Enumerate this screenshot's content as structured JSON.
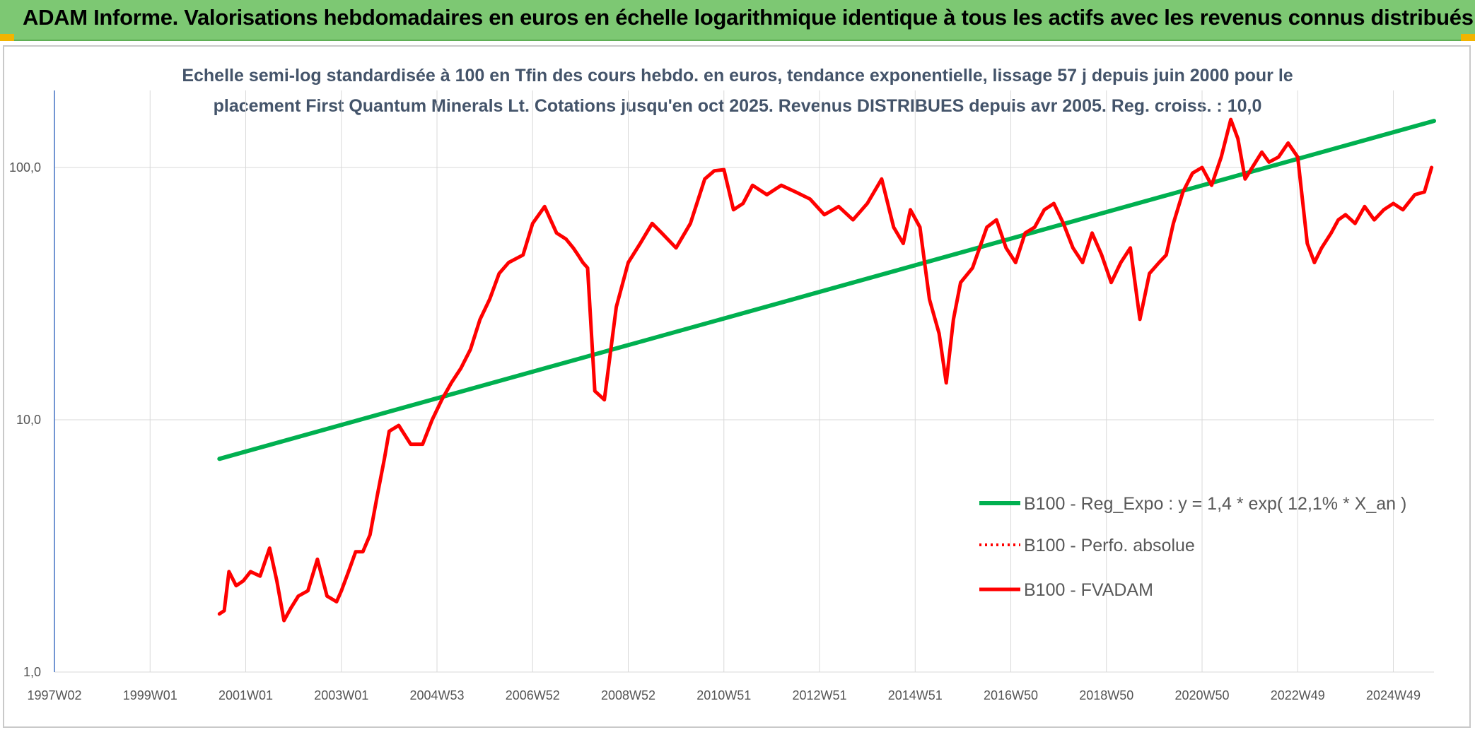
{
  "header": {
    "title": "ADAM Informe. Valorisations hebdomadaires en euros en échelle logarithmique identique à tous les actifs avec les revenus connus distribués"
  },
  "colors": {
    "header_bg": "#7dc873",
    "trend": "#00b050",
    "price": "#ff0000",
    "grid": "#d9d9d9",
    "text": "#44546a"
  },
  "chart_data": {
    "type": "line",
    "subtitle_line1": "Echelle semi-log standardisée à 100 en Tfin des cours hebdo. en euros, tendance exponentielle, lissage 57 j depuis juin 2000 pour le",
    "subtitle_line2": "placement First Quantum Minerals Lt. Cotations jusqu'en oct 2025. Revenus DISTRIBUES depuis avr 2005. Reg. croiss. : 10,0",
    "y_scale": "log",
    "ylim": [
      1,
      180
    ],
    "y_tick_labels": [
      "100,0",
      "10,0",
      "1,0"
    ],
    "x_tick_labels": [
      "1997W02",
      "1999W01",
      "2001W01",
      "2003W01",
      "2004W53",
      "2006W52",
      "2008W52",
      "2010W51",
      "2012W51",
      "2014W51",
      "2016W50",
      "2018W50",
      "2020W50",
      "2022W49",
      "2024W49"
    ],
    "xlim": [
      1997.0,
      2025.85
    ],
    "grid": true,
    "legend_position": "right",
    "legend": [
      "B100 - Reg_Expo : y = 1,4 * exp( 12,1% *  X_an )",
      "B100 - Perfo. absolue",
      "B100 - FVADAM"
    ],
    "series": [
      {
        "name": "B100 - Reg_Expo : y = 1,4 * exp( 12,1% *  X_an )",
        "style": "solid",
        "x": [
          2000.45,
          2025.85
        ],
        "y": [
          7.0,
          153.0
        ]
      },
      {
        "name": "B100 - Perfo. absolue",
        "style": "dotted",
        "x": [],
        "y": []
      },
      {
        "name": "B100 - FVADAM",
        "style": "solid",
        "x": [
          2000.45,
          2000.55,
          2000.65,
          2000.8,
          2000.95,
          2001.1,
          2001.3,
          2001.5,
          2001.65,
          2001.8,
          2001.95,
          2002.1,
          2002.3,
          2002.5,
          2002.7,
          2002.9,
          2003.0,
          2003.15,
          2003.3,
          2003.45,
          2003.6,
          2003.75,
          2003.9,
          2004.0,
          2004.2,
          2004.45,
          2004.7,
          2004.9,
          2005.1,
          2005.3,
          2005.5,
          2005.7,
          2005.9,
          2006.1,
          2006.3,
          2006.5,
          2006.8,
          2007.0,
          2007.25,
          2007.5,
          2007.7,
          2007.85,
          2007.95,
          2008.05,
          2008.15,
          2008.3,
          2008.5,
          2008.75,
          2009.0,
          2009.25,
          2009.5,
          2009.7,
          2010.0,
          2010.3,
          2010.6,
          2010.8,
          2011.0,
          2011.2,
          2011.4,
          2011.6,
          2011.9,
          2012.2,
          2012.5,
          2012.8,
          2013.1,
          2013.4,
          2013.7,
          2014.0,
          2014.3,
          2014.55,
          2014.75,
          2014.9,
          2015.1,
          2015.3,
          2015.5,
          2015.65,
          2015.8,
          2015.95,
          2016.2,
          2016.5,
          2016.7,
          2016.9,
          2017.1,
          2017.3,
          2017.5,
          2017.7,
          2017.9,
          2018.1,
          2018.3,
          2018.5,
          2018.7,
          2018.9,
          2019.1,
          2019.3,
          2019.5,
          2019.7,
          2019.9,
          2020.1,
          2020.25,
          2020.4,
          2020.6,
          2020.8,
          2021.0,
          2021.2,
          2021.4,
          2021.6,
          2021.75,
          2021.9,
          2022.05,
          2022.25,
          2022.4,
          2022.6,
          2022.8,
          2023.0,
          2023.2,
          2023.35,
          2023.5,
          2023.7,
          2023.85,
          2024.0,
          2024.2,
          2024.4,
          2024.6,
          2024.8,
          2025.0,
          2025.2,
          2025.45,
          2025.65,
          2025.8
        ],
        "y": [
          1.7,
          1.75,
          2.5,
          2.2,
          2.3,
          2.5,
          2.4,
          3.1,
          2.3,
          1.6,
          1.8,
          2.0,
          2.1,
          2.8,
          2.0,
          1.9,
          2.1,
          2.5,
          3.0,
          3.0,
          3.5,
          5.0,
          7.0,
          9.0,
          9.5,
          8.0,
          8.0,
          10.0,
          12.0,
          14.0,
          16.0,
          19.0,
          25.0,
          30.0,
          38.0,
          42.0,
          45.0,
          60.0,
          70.0,
          55.0,
          52.0,
          48.0,
          45.0,
          42.0,
          40.0,
          13.0,
          12.0,
          28.0,
          42.0,
          50.0,
          60.0,
          55.0,
          48.0,
          60.0,
          90.0,
          97.0,
          98.0,
          68.0,
          72.0,
          85.0,
          78.0,
          85.0,
          80.0,
          75.0,
          65.0,
          70.0,
          62.0,
          72.0,
          90.0,
          58.0,
          50.0,
          68.0,
          58.0,
          30.0,
          22.0,
          14.0,
          25.0,
          35.0,
          40.0,
          58.0,
          62.0,
          48.0,
          42.0,
          55.0,
          58.0,
          68.0,
          72.0,
          60.0,
          48.0,
          42.0,
          55.0,
          45.0,
          35.0,
          42.0,
          48.0,
          25.0,
          38.0,
          42.0,
          45.0,
          60.0,
          80.0,
          95.0,
          100.0,
          85.0,
          110.0,
          155.0,
          130.0,
          90.0,
          100.0,
          115.0,
          105.0,
          110.0,
          125.0,
          110.0,
          50.0,
          42.0,
          48.0,
          55.0,
          62.0,
          65.0,
          60.0,
          70.0,
          62.0,
          68.0,
          72.0,
          68.0,
          78.0,
          80.0,
          100.0
        ]
      }
    ]
  }
}
